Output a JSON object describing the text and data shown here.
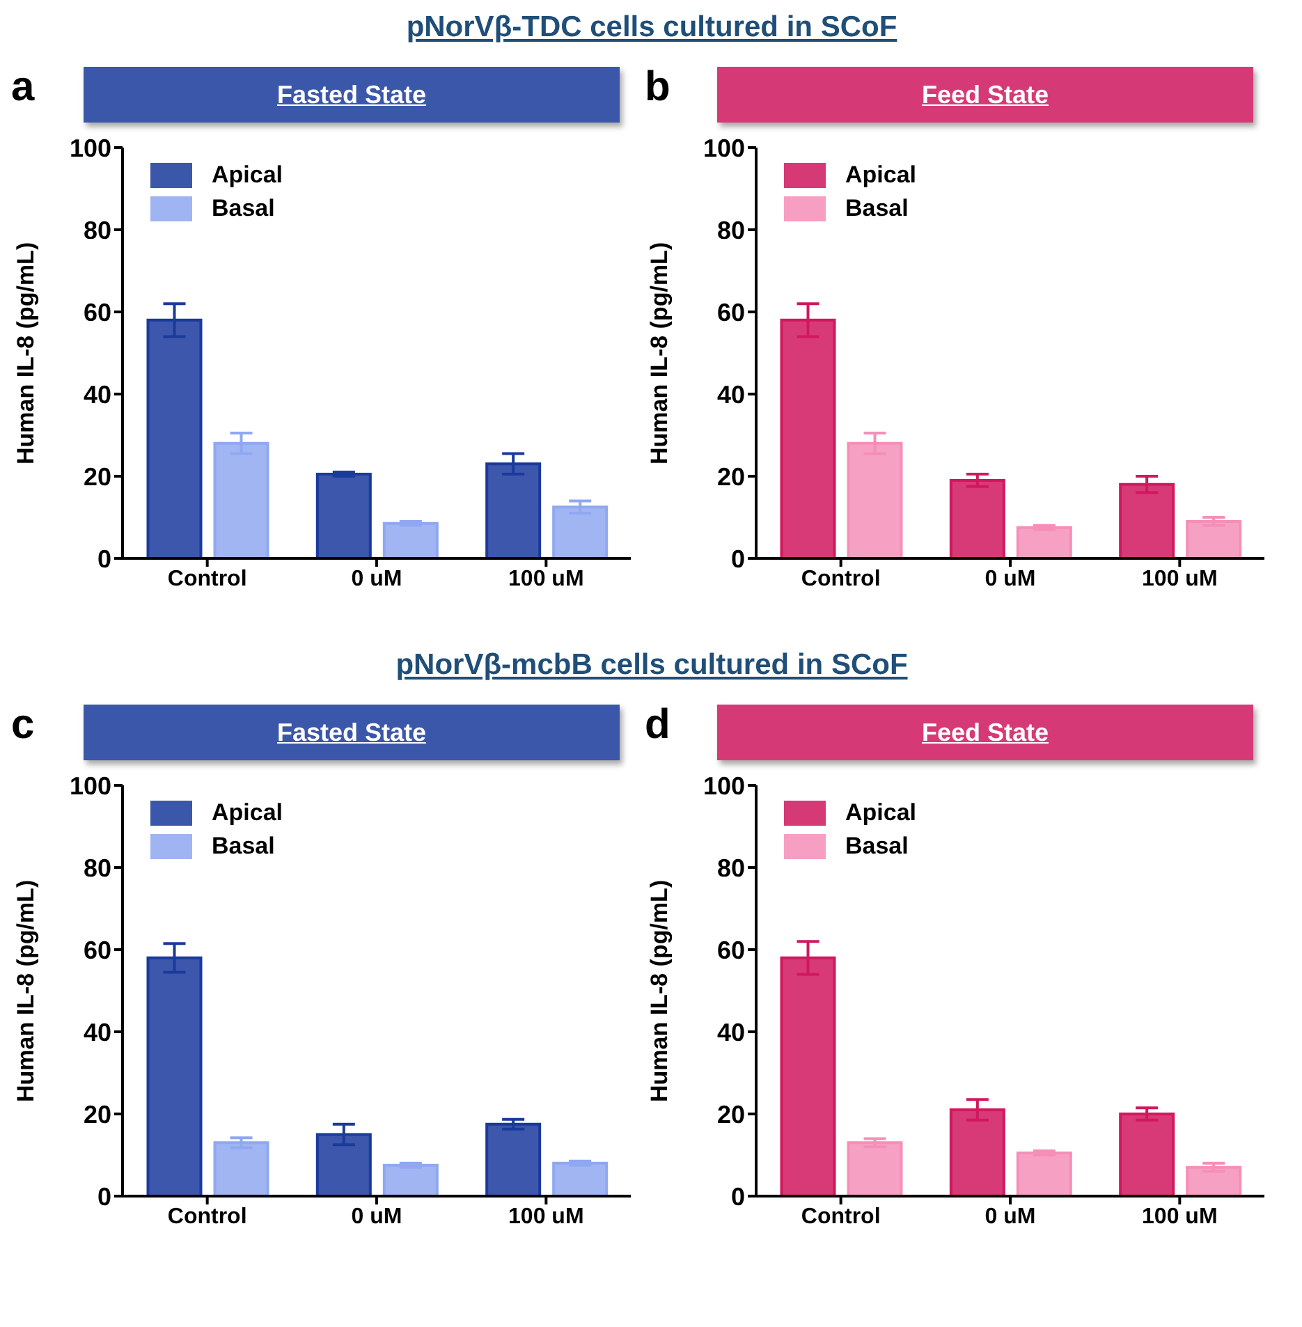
{
  "chart_data": [
    {
      "type": "bar",
      "subtitle": "pNorVβ-TDC cells cultured in SCoF",
      "title": "Fasted State",
      "annotations": [
        "a"
      ],
      "ylabel": "Human IL-8 (pg/mL)",
      "categories": [
        "Control",
        "0 uM",
        "100 uM"
      ],
      "ylim": [
        0,
        100
      ],
      "yticks": [
        0,
        20,
        40,
        60,
        80,
        100
      ],
      "legend": "top left",
      "grid": false,
      "series": [
        {
          "name": "Apical",
          "color": "#1a3a9c",
          "values": [
            58,
            20.5,
            23
          ],
          "errors": [
            4,
            0.5,
            2.5
          ]
        },
        {
          "name": "Basal",
          "color": "#8fa8f0",
          "values": [
            28,
            8.5,
            12.5
          ],
          "errors": [
            2.5,
            0.5,
            1.5
          ]
        }
      ]
    },
    {
      "type": "bar",
      "title": "Feed State",
      "annotations": [
        "b"
      ],
      "ylabel": "Human IL-8 (pg/mL)",
      "categories": [
        "Control",
        "0 uM",
        "100 uM"
      ],
      "ylim": [
        0,
        100
      ],
      "yticks": [
        0,
        20,
        40,
        60,
        80,
        100
      ],
      "legend": "top left",
      "grid": false,
      "series": [
        {
          "name": "Apical",
          "color": "#d0185f",
          "values": [
            58,
            19,
            18
          ],
          "errors": [
            4,
            1.5,
            2
          ]
        },
        {
          "name": "Basal",
          "color": "#f58fb8",
          "values": [
            28,
            7.5,
            9
          ],
          "errors": [
            2.5,
            0.5,
            1
          ]
        }
      ]
    },
    {
      "type": "bar",
      "subtitle": "pNorVβ-mcbB cells cultured in SCoF",
      "title": "Fasted State",
      "annotations": [
        "c"
      ],
      "ylabel": "Human IL-8 (pg/mL)",
      "categories": [
        "Control",
        "0 uM",
        "100 uM"
      ],
      "ylim": [
        0,
        100
      ],
      "yticks": [
        0,
        20,
        40,
        60,
        80,
        100
      ],
      "legend": "top left",
      "grid": false,
      "series": [
        {
          "name": "Apical",
          "color": "#1a3a9c",
          "values": [
            58,
            15,
            17.5
          ],
          "errors": [
            3.5,
            2.5,
            1.2
          ]
        },
        {
          "name": "Basal",
          "color": "#8fa8f0",
          "values": [
            13,
            7.5,
            8
          ],
          "errors": [
            1.2,
            0.5,
            0.5
          ]
        }
      ]
    },
    {
      "type": "bar",
      "title": "Feed State",
      "annotations": [
        "d"
      ],
      "ylabel": "Human IL-8 (pg/mL)",
      "categories": [
        "Control",
        "0 uM",
        "100 uM"
      ],
      "ylim": [
        0,
        100
      ],
      "yticks": [
        0,
        20,
        40,
        60,
        80,
        100
      ],
      "legend": "top left",
      "grid": false,
      "series": [
        {
          "name": "Apical",
          "color": "#d0185f",
          "values": [
            58,
            21,
            20
          ],
          "errors": [
            4,
            2.5,
            1.5
          ]
        },
        {
          "name": "Basal",
          "color": "#f58fb8",
          "values": [
            13,
            10.5,
            7
          ],
          "errors": [
            1,
            0.5,
            1
          ]
        }
      ]
    }
  ]
}
